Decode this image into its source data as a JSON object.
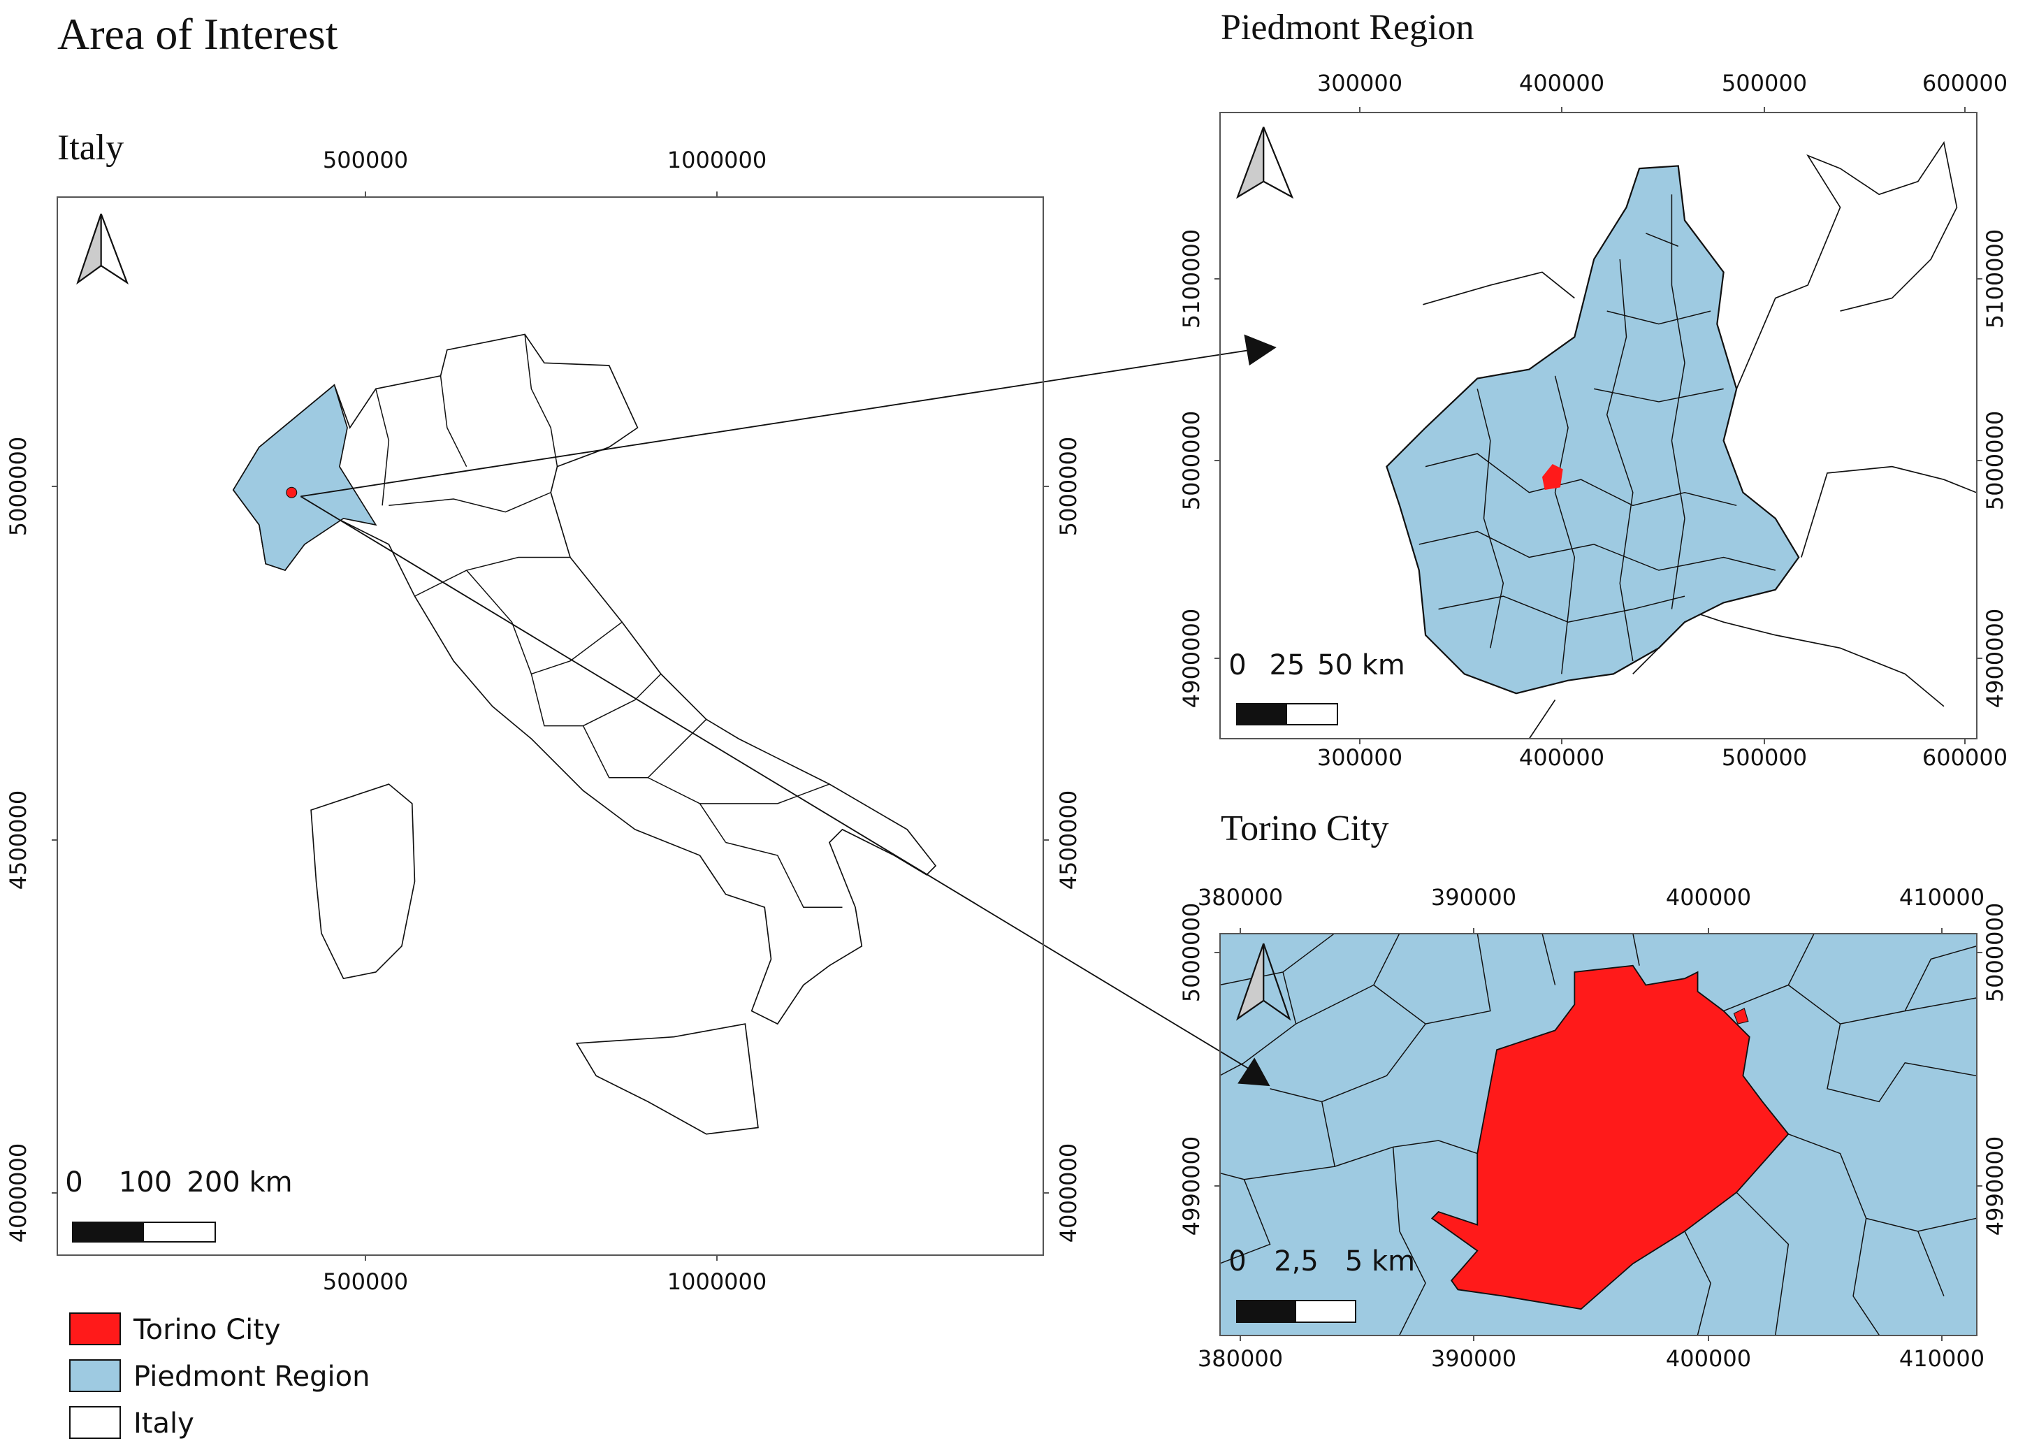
{
  "title": "Area of Interest",
  "panels": [
    {
      "title": "Italy",
      "x_ticks": [
        500000,
        1000000
      ],
      "y_ticks": [
        5000000,
        4500000,
        4000000
      ],
      "scale_labels": [
        "0",
        "100",
        "200 km"
      ]
    },
    {
      "title": "Piedmont Region",
      "x_ticks": [
        300000,
        400000,
        500000,
        600000
      ],
      "y_ticks": [
        5100000,
        5000000,
        4900000
      ],
      "scale_labels": [
        "0",
        "25",
        "50 km"
      ]
    },
    {
      "title": "Torino City",
      "x_ticks": [
        380000,
        390000,
        400000,
        410000
      ],
      "y_ticks": [
        5000000,
        4990000
      ],
      "scale_labels": [
        "0",
        "2,5",
        "5 km"
      ]
    }
  ],
  "legend": [
    {
      "label": "Torino City",
      "color": "#ff1a1a"
    },
    {
      "label": "Piedmont Region",
      "color": "#9ecae1"
    },
    {
      "label": "Italy",
      "color": "#ffffff"
    }
  ]
}
